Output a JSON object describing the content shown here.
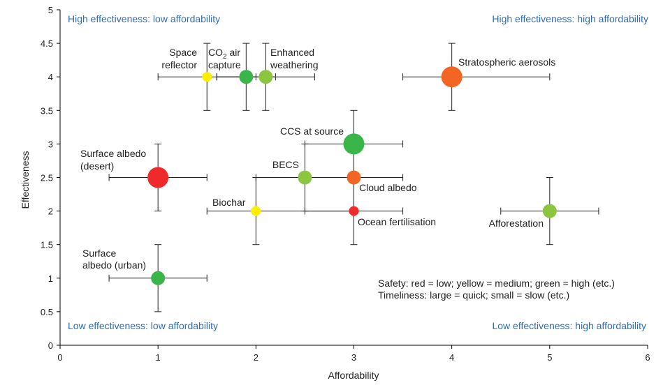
{
  "colors": {
    "red": "#ee2a2a",
    "orange": "#f26522",
    "yellow": "#ffee00",
    "lightgreen": "#8cc63f",
    "green": "#3ab54a",
    "quadrant_text": "#2e6db4",
    "axis": "#000000"
  },
  "chart_data": {
    "type": "scatter",
    "xlabel": "Affordability",
    "ylabel": "Effectiveness",
    "xlim": [
      0,
      6
    ],
    "ylim": [
      0,
      5
    ],
    "xticks": [
      "0",
      "1",
      "2",
      "3",
      "4",
      "5",
      "6"
    ],
    "yticks": [
      "0",
      "0.5",
      "1",
      "1.5",
      "2",
      "2.5",
      "3",
      "3.5",
      "4",
      "4.5",
      "5"
    ],
    "grid": false,
    "quadrants": {
      "top_left": "High effectiveness: low affordability",
      "top_right": "High effectiveness: high affordability",
      "bottom_left": "Low effectiveness: low affordability",
      "bottom_right": "Low effectiveness: high affordability"
    },
    "legend_lines": [
      "Safety: red = low; yellow = medium; green = high (etc.)",
      "Timeliness: large = quick; small = slow (etc.)"
    ],
    "points": [
      {
        "name": "Space reflector",
        "label_lines": [
          "Space",
          "reflector"
        ],
        "x": 1.5,
        "y": 4.0,
        "xerr": [
          1.0,
          2.0
        ],
        "yerr": [
          3.5,
          4.5
        ],
        "color": "yellow",
        "size": "small"
      },
      {
        "name": "CO2 air capture",
        "label_lines": [
          "CO",
          "2",
          " air",
          "capture"
        ],
        "x": 1.9,
        "y": 4.0,
        "xerr": [
          1.6,
          2.2
        ],
        "yerr": [
          3.5,
          4.5
        ],
        "color": "green",
        "size": "medium"
      },
      {
        "name": "Enhanced weathering",
        "label_lines": [
          "Enhanced",
          "weathering"
        ],
        "x": 2.1,
        "y": 4.0,
        "xerr": [
          1.6,
          2.6
        ],
        "yerr": [
          3.5,
          4.5
        ],
        "color": "lightgreen",
        "size": "medium"
      },
      {
        "name": "Stratospheric aerosols",
        "label_lines": [
          "Stratospheric aerosols"
        ],
        "x": 4.0,
        "y": 4.0,
        "xerr": [
          3.5,
          5.0
        ],
        "yerr": [
          3.5,
          4.5
        ],
        "color": "orange",
        "size": "large"
      },
      {
        "name": "CCS at source",
        "label_lines": [
          "CCS at source"
        ],
        "x": 3.0,
        "y": 3.0,
        "xerr": [
          2.5,
          3.5
        ],
        "yerr": [
          2.5,
          3.5
        ],
        "color": "green",
        "size": "large"
      },
      {
        "name": "Surface albedo (desert)",
        "label_lines": [
          "Surface albedo",
          "(desert)"
        ],
        "x": 1.0,
        "y": 2.5,
        "xerr": [
          0.5,
          1.5
        ],
        "yerr": [
          2.0,
          3.0
        ],
        "color": "red",
        "size": "large"
      },
      {
        "name": "BECS",
        "label_lines": [
          "BECS"
        ],
        "x": 2.5,
        "y": 2.5,
        "xerr": [
          2.0,
          3.0
        ],
        "yerr": [
          2.0,
          3.0
        ],
        "color": "lightgreen",
        "size": "medium"
      },
      {
        "name": "Cloud albedo",
        "label_lines": [
          "Cloud albedo"
        ],
        "x": 3.0,
        "y": 2.5,
        "xerr": [
          2.5,
          3.5
        ],
        "yerr": [
          2.0,
          3.0
        ],
        "color": "orange",
        "size": "medium"
      },
      {
        "name": "Biochar",
        "label_lines": [
          "Biochar"
        ],
        "x": 2.0,
        "y": 2.0,
        "xerr": [
          1.5,
          3.0
        ],
        "yerr": [
          1.5,
          2.5
        ],
        "color": "yellow",
        "size": "small"
      },
      {
        "name": "Ocean fertilisation",
        "label_lines": [
          "Ocean fertilisation"
        ],
        "x": 3.0,
        "y": 2.0,
        "xerr": [
          2.5,
          3.5
        ],
        "yerr": [
          1.5,
          2.5
        ],
        "color": "red",
        "size": "small"
      },
      {
        "name": "Afforestation",
        "label_lines": [
          "Afforestation"
        ],
        "x": 5.0,
        "y": 2.0,
        "xerr": [
          4.5,
          5.5
        ],
        "yerr": [
          1.5,
          2.5
        ],
        "color": "lightgreen",
        "size": "medium"
      },
      {
        "name": "Surface albedo (urban)",
        "label_lines": [
          "Surface",
          "albedo (urban)"
        ],
        "x": 1.0,
        "y": 1.0,
        "xerr": [
          0.5,
          1.5
        ],
        "yerr": [
          0.5,
          1.5
        ],
        "color": "green",
        "size": "medium"
      }
    ]
  }
}
